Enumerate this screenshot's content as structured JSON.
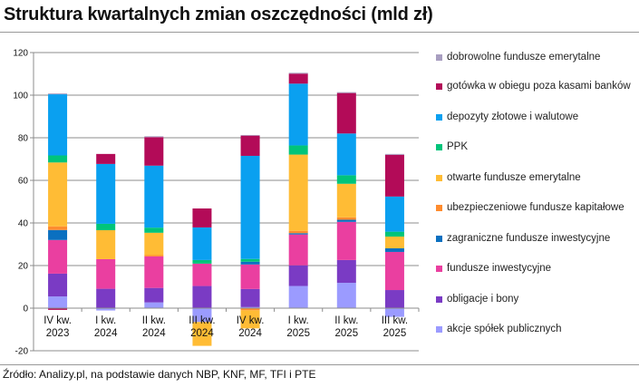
{
  "title": "Struktura kwartalnych zmian oszczędności (mld zł)",
  "source": "Źródło: Analizy.pl, na podstawie danych NBP, KNF, MF, TFI i PTE",
  "chart_data": {
    "type": "bar",
    "stacked": true,
    "title": "Struktura kwartalnych zmian oszczędności (mld zł)",
    "categories": [
      [
        "IV  kw.",
        "2023"
      ],
      [
        "I kw.",
        "2024"
      ],
      [
        "II kw.",
        "2024"
      ],
      [
        "III kw.",
        "2024"
      ],
      [
        "IV  kw.",
        "2024"
      ],
      [
        "I kw.",
        "2025"
      ],
      [
        "II kw.",
        "2025"
      ],
      [
        "III kw.",
        "2025"
      ]
    ],
    "ylim": [
      -20,
      120
    ],
    "yticks": [
      -20,
      0,
      20,
      40,
      60,
      80,
      100,
      120
    ],
    "grid": true,
    "legend_position": "right",
    "series": [
      {
        "name": "akcje spółek publicznych",
        "color": "#9b9bff",
        "values": [
          5.5,
          -1.1,
          2.7,
          -6.5,
          0.5,
          10.4,
          11.9,
          -4.1
        ]
      },
      {
        "name": "obligacje i bony",
        "color": "#7a3bc4",
        "values": [
          10.7,
          9.1,
          6.8,
          10.4,
          8.5,
          9.7,
          10.7,
          8.5
        ]
      },
      {
        "name": "fundusze inwestycyjne",
        "color": "#ea3fa0",
        "values": [
          15.8,
          13.9,
          14.8,
          10.5,
          11.5,
          14.5,
          17.9,
          17.9
        ]
      },
      {
        "name": "zagraniczne fundusze inwestycyjne",
        "color": "#0b70c0",
        "values": [
          4.7,
          0,
          0,
          0,
          1.3,
          0.6,
          1.0,
          1.7
        ]
      },
      {
        "name": "ubezpieczeniowe fundusze kapitałowe",
        "color": "#ff8c2e",
        "values": [
          1.7,
          0,
          0.6,
          0,
          -1.0,
          1.1,
          1.1,
          0
        ]
      },
      {
        "name": "otwarte fundusze emerytalne",
        "color": "#ffbc35",
        "values": [
          30.0,
          13.6,
          10.5,
          -11.2,
          -8.5,
          35.8,
          15.8,
          5.5
        ]
      },
      {
        "name": "PPK",
        "color": "#00c47a",
        "values": [
          3.3,
          3.0,
          2.4,
          1.7,
          1.3,
          4.3,
          4.0,
          2.3
        ]
      },
      {
        "name": "depozyty złotowe i walutowe",
        "color": "#0aa0f0",
        "values": [
          28.7,
          28.1,
          29.1,
          15.3,
          48.4,
          29.0,
          19.6,
          16.5
        ]
      },
      {
        "name": "gotówka w obiegu poza kasami banków",
        "color": "#b30b58",
        "values": [
          -0.8,
          4.7,
          13.4,
          8.9,
          9.5,
          4.7,
          19.0,
          19.6
        ]
      },
      {
        "name": "dobrowolne fundusze emerytalne",
        "color": "#a89ec0",
        "values": [
          0.4,
          0,
          0.4,
          0,
          0.3,
          0.4,
          0.4,
          0.4
        ]
      }
    ]
  }
}
